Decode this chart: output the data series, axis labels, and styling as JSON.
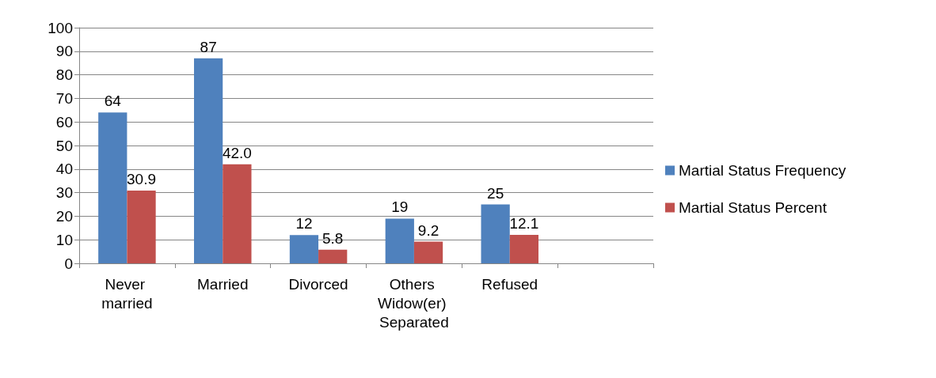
{
  "chart_data": {
    "type": "bar",
    "categories": [
      "Never married",
      "Married",
      "Divorced",
      "Others Widow(er) Separated",
      "Refused",
      null
    ],
    "series": [
      {
        "name": "Martial Status Frequency",
        "color": "#4f81bd",
        "values": [
          64,
          87,
          12,
          19,
          25,
          null
        ],
        "value_labels": [
          "64",
          "87",
          "12",
          "19",
          "25",
          null
        ]
      },
      {
        "name": "Martial Status Percent",
        "color": "#c0504d",
        "values": [
          30.9,
          42.0,
          5.8,
          9.2,
          12.1,
          null
        ],
        "value_labels": [
          "30.9",
          "42.0",
          "5.8",
          "9.2",
          "12.1",
          null
        ]
      }
    ],
    "ylim": [
      0,
      100
    ],
    "yticks": [
      0,
      10,
      20,
      30,
      40,
      50,
      60,
      70,
      80,
      90,
      100
    ],
    "grid": "y",
    "legend": "right"
  }
}
